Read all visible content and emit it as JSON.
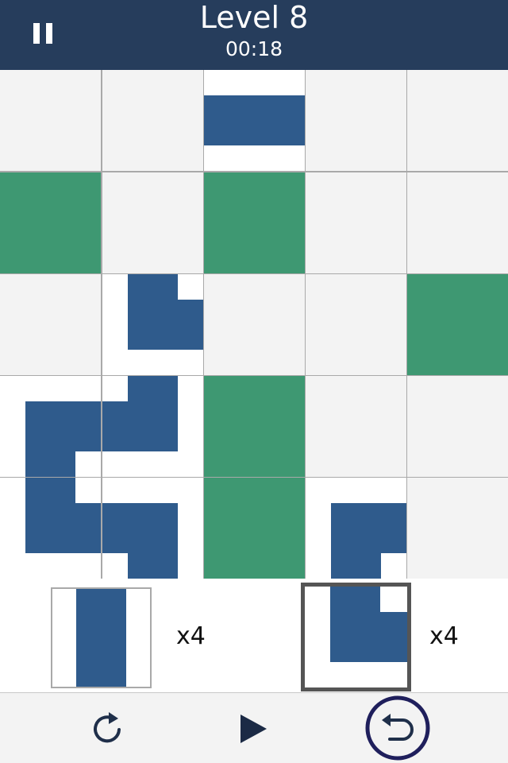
{
  "header": {
    "title": "Level 8",
    "timer": "00:18"
  },
  "board": {
    "rows": 5,
    "cols": 5,
    "cells": [
      [
        "empty",
        "empty",
        "pipe-straight-horizontal",
        "empty",
        "empty"
      ],
      [
        "green",
        "empty",
        "green",
        "empty",
        "empty"
      ],
      [
        "empty",
        "pipe-elbow",
        "empty",
        "empty",
        "green"
      ],
      [
        "pipe-elbow",
        "pipe-elbow",
        "green",
        "empty",
        "empty"
      ],
      [
        "pipe-elbow",
        "pipe-elbow",
        "green",
        "pipe-elbow",
        "empty"
      ]
    ]
  },
  "tray": {
    "items": [
      {
        "icon": "pipe-straight-vertical",
        "count": "x4",
        "selected": false
      },
      {
        "icon": "pipe-elbow",
        "count": "x4",
        "selected": true
      }
    ]
  },
  "controls": {
    "rotate_icon": "rotate-icon",
    "play_icon": "play-icon",
    "undo_icon": "undo-icon"
  },
  "colors": {
    "header": "#263d5c",
    "pipe": "#2f5b8c",
    "target": "#3e9872",
    "empty_cell": "#f3f3f3",
    "grid": "#a9a9a9",
    "undo_ring": "#1f1f5c"
  }
}
